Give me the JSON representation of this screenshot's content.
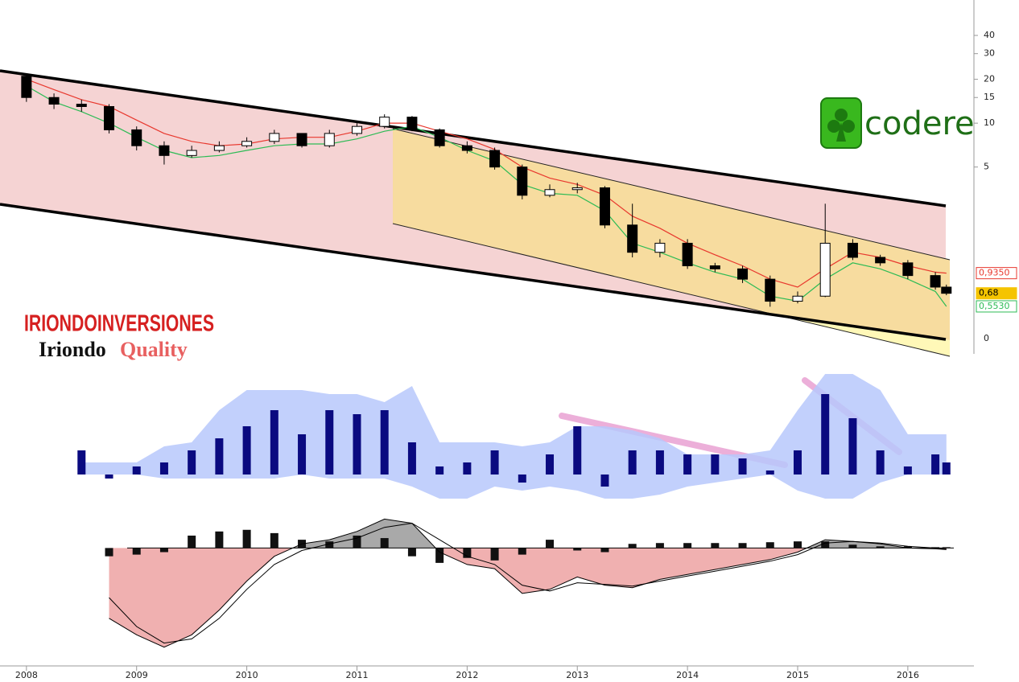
{
  "chart_data": [
    {
      "type": "candlestick",
      "x": [
        2008.0,
        2008.25,
        2008.5,
        2008.75,
        2009.0,
        2009.25,
        2009.5,
        2009.75,
        2010.0,
        2010.25,
        2010.5,
        2010.75,
        2011.0,
        2011.25,
        2011.5,
        2011.75,
        2012.0,
        2012.25,
        2012.5,
        2012.75,
        2013.0,
        2013.25,
        2013.5,
        2013.75,
        2014.0,
        2014.25,
        2014.5,
        2014.75,
        2015.0,
        2015.25,
        2015.5,
        2015.75,
        2016.0,
        2016.25,
        2016.35
      ],
      "open": [
        21,
        15,
        13.5,
        13,
        9,
        7,
        6,
        6.5,
        7,
        7.5,
        8.5,
        7,
        8.5,
        9.5,
        11,
        9,
        7,
        6.5,
        5,
        3.2,
        3.5,
        3.6,
        2,
        1.3,
        1.5,
        1.05,
        1.0,
        0.85,
        0.6,
        0.65,
        1.5,
        1.2,
        1.1,
        0.9,
        0.75
      ],
      "high": [
        22,
        16,
        14.5,
        13.5,
        9.5,
        7.5,
        7,
        7.5,
        8,
        9,
        8.5,
        9,
        10,
        11.5,
        11.2,
        9.2,
        7.5,
        6.8,
        5.2,
        3.8,
        3.9,
        3.7,
        2.8,
        1.6,
        1.6,
        1.1,
        1.05,
        0.9,
        0.7,
        2.8,
        1.6,
        1.25,
        1.15,
        0.95,
        0.78
      ],
      "low": [
        14,
        12.5,
        12,
        8.5,
        6.5,
        5.2,
        5.8,
        6.3,
        6.8,
        7.2,
        6.8,
        6.8,
        8.2,
        9.2,
        8.8,
        6.8,
        6.2,
        4.8,
        3,
        3.1,
        3.3,
        1.9,
        1.2,
        1.2,
        1.0,
        0.95,
        0.8,
        0.55,
        0.58,
        0.64,
        1.15,
        1.05,
        0.85,
        0.72,
        0.66
      ],
      "close": [
        15,
        13.5,
        13,
        9,
        7,
        6,
        6.5,
        7,
        7.5,
        8.5,
        7,
        8.5,
        9.5,
        11,
        9,
        7,
        6.5,
        5,
        3.2,
        3.5,
        3.6,
        2,
        1.3,
        1.5,
        1.05,
        1.0,
        0.85,
        0.6,
        0.65,
        1.5,
        1.2,
        1.1,
        0.9,
        0.75,
        0.68
      ],
      "color_up": "#ffffff",
      "color_down": "#000000",
      "series": [
        {
          "color": "#e8382e",
          "values": [
            20,
            17,
            14.5,
            13,
            10.5,
            8.5,
            7.5,
            7,
            7.2,
            7.8,
            8,
            8,
            8.8,
            10,
            10,
            8.8,
            7.8,
            6.6,
            5,
            4.2,
            3.8,
            3.2,
            2.3,
            1.9,
            1.5,
            1.25,
            1.05,
            0.85,
            0.75,
            1.0,
            1.3,
            1.2,
            1.05,
            0.95,
            0.935
          ]
        },
        {
          "color": "#2dbb55",
          "values": [
            18,
            14,
            12,
            10,
            8,
            6.5,
            5.8,
            6,
            6.5,
            7,
            7.2,
            7.2,
            7.8,
            8.8,
            9.5,
            8,
            6.5,
            5.5,
            3.8,
            3.3,
            3.2,
            2.5,
            1.5,
            1.3,
            1.1,
            0.95,
            0.85,
            0.65,
            0.6,
            0.85,
            1.1,
            1.0,
            0.85,
            0.7,
            0.553
          ]
        }
      ],
      "log_scale": true,
      "xlim": [
        2007.76,
        2016.6
      ],
      "ylim": [
        0.23,
        70
      ],
      "xticks": [
        2008,
        2009,
        2010,
        2011,
        2012,
        2013,
        2014,
        2015,
        2016
      ],
      "yticks": [
        5,
        10,
        15,
        20,
        30,
        40
      ],
      "last_value_tags": [
        {
          "value": 0.935,
          "label": "0,9350",
          "color": "#e8382e"
        },
        {
          "value": 0.68,
          "label": "0,68",
          "color": "#f5c400"
        },
        {
          "value": 0.553,
          "label": "0,5530",
          "color": "#2dbb55"
        }
      ],
      "axis_note": "0"
    },
    {
      "type": "bar",
      "x": [
        2008.0,
        2008.25,
        2008.5,
        2008.75,
        2009.0,
        2009.25,
        2009.5,
        2009.75,
        2010.0,
        2010.25,
        2010.5,
        2010.75,
        2011.0,
        2011.25,
        2011.5,
        2011.75,
        2012.0,
        2012.25,
        2012.5,
        2012.75,
        2013.0,
        2013.25,
        2013.5,
        2013.75,
        2014.0,
        2014.25,
        2014.5,
        2014.75,
        2015.0,
        2015.25,
        2015.5,
        2015.75,
        2016.0,
        2016.25,
        2016.35
      ],
      "values": [
        null,
        null,
        30,
        -5,
        10,
        15,
        30,
        45,
        60,
        80,
        50,
        80,
        75,
        80,
        40,
        10,
        15,
        30,
        -10,
        25,
        60,
        -15,
        30,
        30,
        25,
        25,
        20,
        5,
        30,
        100,
        70,
        30,
        10,
        25,
        15
      ],
      "color": "#0a0a80",
      "band": {
        "color": "#b7c8fb",
        "upper": [
          null,
          null,
          15,
          15,
          15,
          35,
          40,
          80,
          105,
          105,
          105,
          100,
          100,
          90,
          110,
          40,
          40,
          40,
          35,
          40,
          60,
          60,
          55,
          45,
          25,
          25,
          25,
          30,
          80,
          125,
          125,
          105,
          50,
          50,
          50
        ],
        "lower": [
          null,
          null,
          0,
          0,
          0,
          -5,
          -5,
          -5,
          -5,
          -5,
          0,
          -5,
          -5,
          -5,
          -15,
          -30,
          -30,
          -15,
          -20,
          -15,
          -20,
          -30,
          -30,
          -25,
          -15,
          -10,
          -5,
          0,
          -20,
          -30,
          -30,
          -10,
          0,
          0,
          0
        ]
      },
      "xlim": [
        2007.76,
        2016.6
      ],
      "ylim": [
        -40,
        130
      ]
    },
    {
      "type": "macd",
      "x": [
        2008.0,
        2008.25,
        2008.5,
        2008.75,
        2009.0,
        2009.25,
        2009.5,
        2009.75,
        2010.0,
        2010.25,
        2010.5,
        2010.75,
        2011.0,
        2011.25,
        2011.5,
        2011.75,
        2012.0,
        2012.25,
        2012.5,
        2012.75,
        2013.0,
        2013.25,
        2013.5,
        2013.75,
        2014.0,
        2014.25,
        2014.5,
        2014.75,
        2015.0,
        2015.25,
        2015.5,
        2015.75,
        2016.0,
        2016.25,
        2016.35
      ],
      "values": [
        null,
        null,
        null,
        -10,
        -8,
        -5,
        15,
        20,
        22,
        18,
        10,
        8,
        15,
        12,
        -10,
        -18,
        -12,
        -15,
        -8,
        10,
        -3,
        -5,
        5,
        6,
        6,
        6,
        6,
        7,
        8,
        8,
        4,
        2,
        2,
        1,
        1
      ],
      "color": "#111111",
      "series": [
        {
          "color": "#000000",
          "values": [
            null,
            null,
            null,
            -85,
            -105,
            -120,
            -105,
            -75,
            -40,
            -10,
            5,
            10,
            20,
            35,
            30,
            -5,
            -20,
            -25,
            -55,
            -50,
            -35,
            -45,
            -48,
            -38,
            -32,
            -26,
            -20,
            -14,
            -5,
            10,
            8,
            5,
            0,
            -1,
            -2
          ]
        },
        {
          "color": "#000000",
          "values": [
            null,
            null,
            null,
            -60,
            -95,
            -115,
            -110,
            -85,
            -50,
            -20,
            -3,
            5,
            12,
            25,
            30,
            10,
            -10,
            -20,
            -45,
            -52,
            -42,
            -44,
            -46,
            -40,
            -34,
            -28,
            -22,
            -16,
            -8,
            6,
            8,
            6,
            2,
            0,
            -1
          ]
        }
      ],
      "fill_below": "#f0b0b0",
      "fill_above": "#a9a9a9",
      "xlim": [
        2007.76,
        2016.6
      ],
      "ylim": [
        -130,
        50
      ]
    }
  ],
  "logos": {
    "brand": "codere",
    "watermark": "IRIONDOINVERSIONES",
    "sub_left": "Iriondo",
    "sub_right": "Quality"
  }
}
